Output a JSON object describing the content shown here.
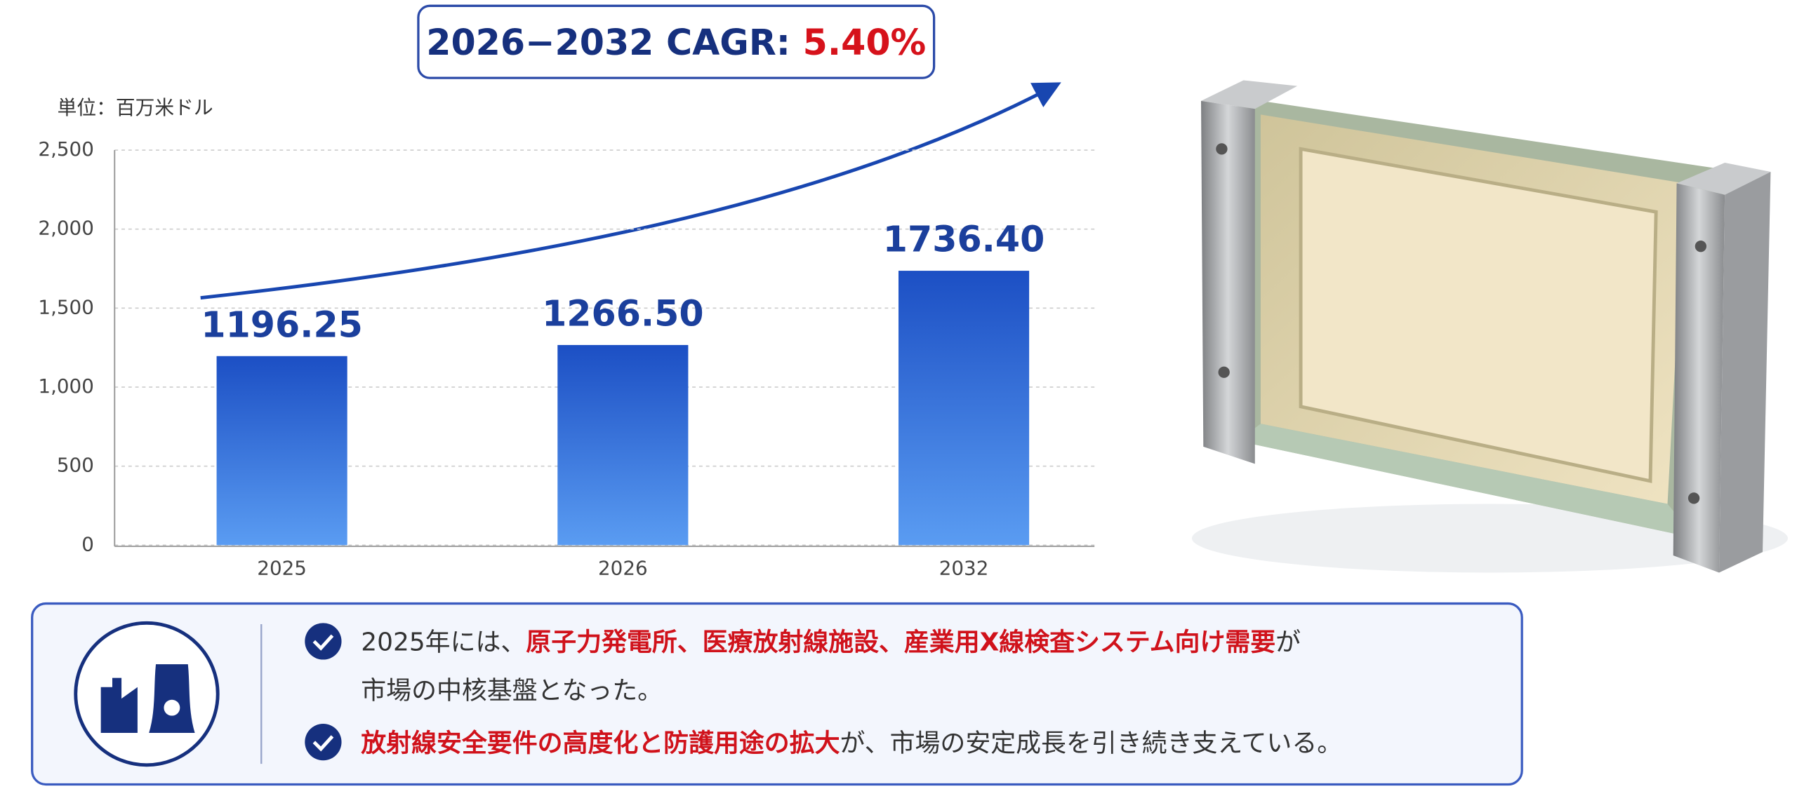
{
  "chart_data": {
    "type": "bar",
    "unit_label": "単位：百万米ドル",
    "annotation": {
      "text": "2026−2032 CAGR: ",
      "highlight": "5.40%"
    },
    "categories": [
      "2025",
      "2026",
      "2032"
    ],
    "values": [
      1196.25,
      1266.5,
      1736.4
    ],
    "value_labels": [
      "1196.25",
      "1266.50",
      "1736.40"
    ],
    "color": "#2f6fe0",
    "ylim": [
      0,
      2500
    ],
    "yticks": [
      0,
      500,
      {
        "value": 1000,
        "label": "1,000"
      },
      {
        "value": 1500,
        "label": "1,500"
      },
      {
        "value": 2000,
        "label": "2,000"
      },
      {
        "value": 2500,
        "label": "2,500"
      }
    ],
    "grid": true
  },
  "notes": [
    {
      "lines": [
        [
          {
            "text": "2025年には、"
          },
          {
            "text": "原子力発電所、医療放射線施設、産業用X線検査システム向け需要",
            "highlight": true
          },
          {
            "text": "が"
          }
        ],
        [
          {
            "text": "市場の中核基盤となった。"
          }
        ]
      ]
    },
    {
      "lines": [
        [
          {
            "text": "放射線安全要件の高度化と防護用途の拡大",
            "highlight": true
          },
          {
            "text": "が、市場の安定成長を引き続き支えている。"
          }
        ]
      ]
    }
  ]
}
